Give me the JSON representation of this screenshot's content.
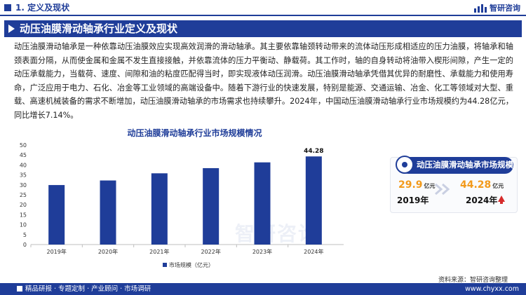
{
  "header": {
    "section_title": "1. 定义及现状",
    "logo_text": "智研咨询"
  },
  "banner": {
    "title": "动压油膜滑动轴承行业定义及现状"
  },
  "body_text": "动压油膜滑动轴承是一种依靠动压油膜效应实现高效润滑的滑动轴承。其主要依靠轴颈转动带来的流体动压形成相适应的压力油膜，将轴承和轴颈表面分隔，从而使金属和金属不发生直接接触，并依靠流体的压力平衡动、静载荷。其工作时，轴的自身转动将油带入楔形间隙，产生一定的动压承载能力，当载荷、速度、间隙和油的粘度匹配得当时，即实现液体动压润滑。动压油膜滑动轴承凭借其优异的耐磨性、承载能力和使用寿命，广泛应用于电力、石化、冶金等工业领域的高端设备中。随着下游行业的快速发展，特别是能源、交通运输、冶金、化工等领域对大型、重载、高速机械装备的需求不断增加，动压油膜滑动轴承的市场需求也持续攀升。2024年，中国动压油膜滑动轴承行业市场规模约为44.28亿元，同比增长7.14%。",
  "chart_data": {
    "type": "bar",
    "title": "动压油膜滑动轴承行业市场规模情况",
    "categories": [
      "2019年",
      "2020年",
      "2021年",
      "2022年",
      "2023年",
      "2024年"
    ],
    "series": [
      {
        "name": "市场规模（亿元）",
        "values": [
          29.9,
          32.2,
          35.8,
          38.4,
          41.3,
          44.28
        ]
      }
    ],
    "data_labels": [
      "",
      "",
      "",
      "",
      "",
      "44.28"
    ],
    "yticks": [
      "0",
      "5",
      "10",
      "15",
      "20",
      "25",
      "30",
      "35",
      "40",
      "45",
      "50"
    ],
    "ylim": [
      0,
      50
    ],
    "grid": false,
    "legend_position": "bottom",
    "bar_color": "#1f3d99"
  },
  "card": {
    "title": "动压油膜滑动轴承市场规模",
    "start_value": "29.9",
    "start_unit": "亿元",
    "start_year": "2019年",
    "end_value": "44.28",
    "end_unit": "亿元",
    "end_year": "2024年"
  },
  "source": "资料来源：智研咨询整理",
  "footer": {
    "left_text": "精品研报 · 专题定制 · 产业顾问 · 市场调研",
    "url": "www.chyxx.com"
  },
  "watermark": "智研咨询",
  "colors": {
    "primary": "#1f3d99",
    "accent": "#f29a1b",
    "up_arrow": "#d62b2b"
  }
}
